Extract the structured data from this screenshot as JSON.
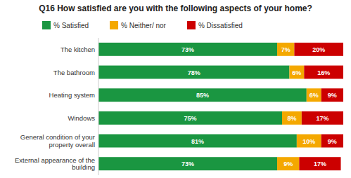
{
  "chart_data": {
    "type": "bar",
    "orientation": "horizontal",
    "stacked": true,
    "title": "Q16 How satisfied are you with the following aspects of your home?",
    "categories": [
      "The kitchen",
      "The bathroom",
      "Heating system",
      "Windows",
      "General condition of your\nproperty overall",
      "External appearance of the\nbuilding"
    ],
    "series": [
      {
        "name": "% Satisfied",
        "color": "#1a9641",
        "values": [
          73,
          78,
          85,
          75,
          81,
          73
        ],
        "value_labels": [
          "73%",
          "78%",
          "85%",
          "75%",
          "81%",
          "73%"
        ]
      },
      {
        "name": "% Neither/ nor",
        "color": "#f4a800",
        "values": [
          7,
          6,
          6,
          8,
          10,
          9
        ],
        "value_labels": [
          "7%",
          "6%",
          "6%",
          "8%",
          "10%",
          "9%"
        ]
      },
      {
        "name": "% Dissatisfied",
        "color": "#cc0000",
        "values": [
          20,
          16,
          9,
          17,
          9,
          17
        ],
        "value_labels": [
          "20%",
          "16%",
          "9%",
          "17%",
          "9%",
          "17%"
        ]
      }
    ],
    "xlim": [
      0,
      100
    ],
    "tick_labels": "y",
    "grid": false,
    "legend": "top",
    "data_labels": true
  }
}
